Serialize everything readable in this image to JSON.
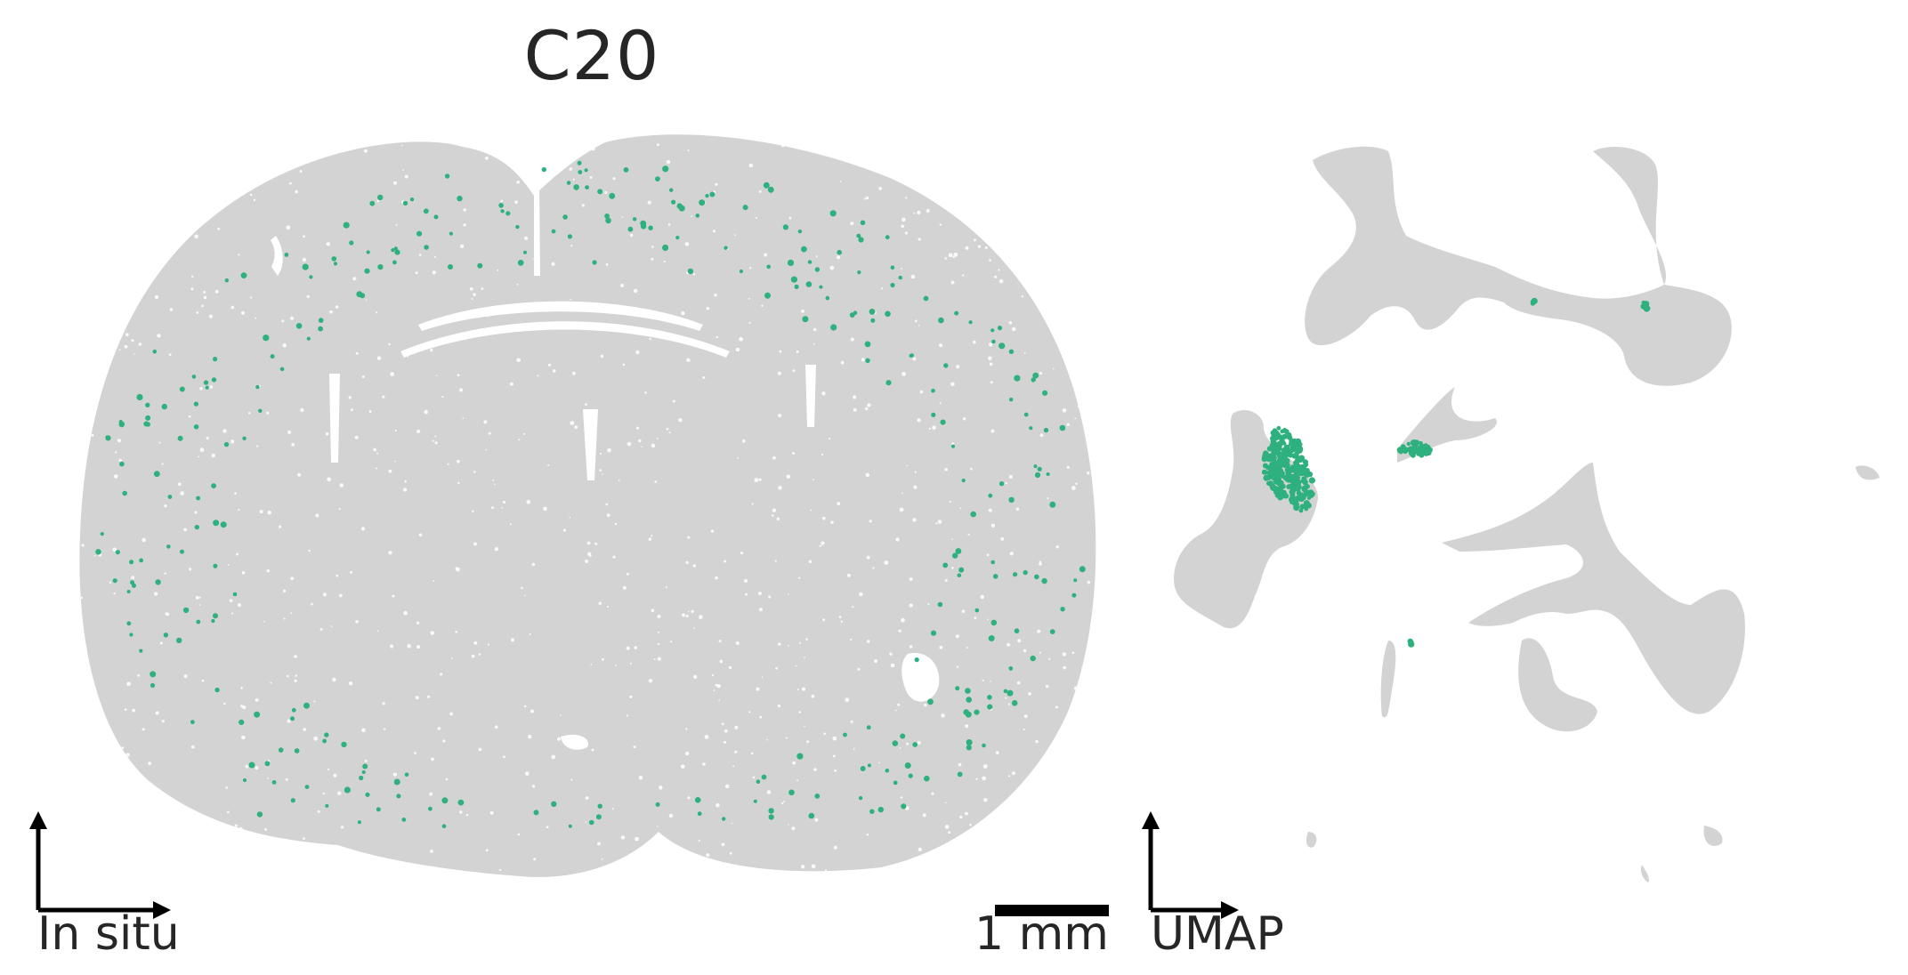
{
  "title": "C20",
  "insitu_label": "In situ",
  "umap_label": "UMAP",
  "scale_bar_label": "1 mm",
  "colors": {
    "background_cells": "#d3d3d3",
    "highlight_cells": "#2eb07f",
    "text": "#262626",
    "axes": "#000000"
  }
}
